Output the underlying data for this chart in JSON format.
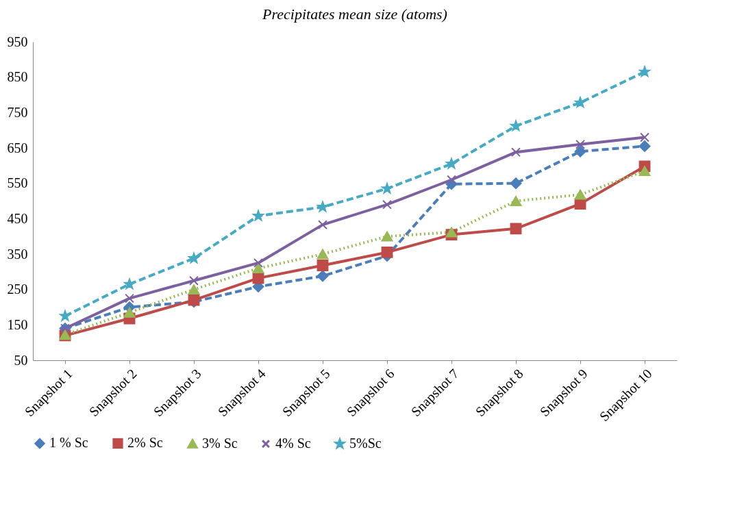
{
  "chart_data": {
    "type": "line",
    "title": "Precipitates mean size (atoms)",
    "categories": [
      "Snapshot 1",
      "Snapshot 2",
      "Snapshot 3",
      "Snapshot 4",
      "Snapshot 5",
      "Snapshot 6",
      "Snapshot 7",
      "Snapshot 8",
      "Snapshot 9",
      "Snapshot 10"
    ],
    "ylim": [
      50,
      950
    ],
    "yticks": [
      50,
      150,
      250,
      350,
      450,
      550,
      650,
      750,
      850,
      950
    ],
    "grid": false,
    "legend": "bottom",
    "series": [
      {
        "name": "1 % Sc",
        "color": "#4a7ebb",
        "marker": "diamond",
        "line_style": "dashed",
        "values": [
          140,
          200,
          215,
          258,
          288,
          345,
          548,
          550,
          640,
          655
        ]
      },
      {
        "name": "2% Sc",
        "color": "#be4b48",
        "marker": "square",
        "line_style": "solid",
        "values": [
          120,
          168,
          220,
          282,
          318,
          355,
          405,
          422,
          492,
          598
        ]
      },
      {
        "name": "3% Sc",
        "color": "#98b954",
        "marker": "triangle",
        "line_style": "dotted",
        "values": [
          122,
          185,
          250,
          310,
          350,
          400,
          412,
          500,
          518,
          585
        ]
      },
      {
        "name": "4% Sc",
        "color": "#7d60a0",
        "marker": "cross",
        "line_style": "solid",
        "values": [
          140,
          225,
          275,
          325,
          433,
          490,
          560,
          638,
          660,
          680
        ]
      },
      {
        "name": "5%Sc",
        "color": "#46aac5",
        "marker": "star",
        "line_style": "dashed",
        "values": [
          175,
          265,
          338,
          458,
          483,
          535,
          605,
          712,
          778,
          865
        ]
      }
    ]
  }
}
